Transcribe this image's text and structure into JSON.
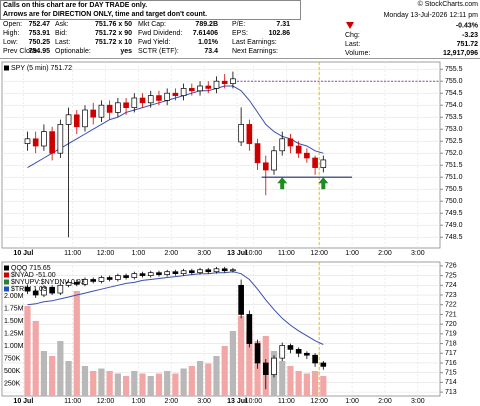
{
  "header": {
    "note": [
      "Calls on this chart are for DAY TRADE only.",
      "Arrows are for DIRECTION ONLY, time and target don't count."
    ],
    "copyright": "© StockCharts.com",
    "datetime": "Monday 13-Jul-2026 12:11 pm",
    "change_pct": "-0.43%",
    "columns": [
      [
        {
          "label": "Open:",
          "value": "752.47"
        },
        {
          "label": "High:",
          "value": "753.91"
        },
        {
          "label": "Low:",
          "value": "750.25"
        },
        {
          "label": "Prev Close:",
          "value": "754.95"
        }
      ],
      [
        {
          "label": "Ask:",
          "value": "751.76 x 50"
        },
        {
          "label": "Bid:",
          "value": "751.72 x 90"
        },
        {
          "label": "Last:",
          "value": "751.72 x 10"
        },
        {
          "label": "Optionable:",
          "value": "yes"
        }
      ],
      [
        {
          "label": "Mkt Cap:",
          "value": "789.2B"
        },
        {
          "label": "Fwd Dividend:",
          "value": "7.61406"
        },
        {
          "label": "Fwd Yield:",
          "value": "1.01%"
        },
        {
          "label": "SCTR (ETF):",
          "value": "73.4"
        }
      ],
      [
        {
          "label": "P/E:",
          "value": "7.31"
        },
        {
          "label": "EPS:",
          "value": "102.86"
        },
        {
          "label": "Last Earnings:"
        },
        {
          "label": "Next Earnings:"
        }
      ]
    ],
    "right": [
      {
        "label": "Chg:",
        "value": "-3.23"
      },
      {
        "label": "Last:",
        "value": "751.72"
      },
      {
        "label": "Volume:",
        "value": "12,917,096"
      }
    ]
  },
  "chart_data": [
    {
      "type": "candlestick",
      "legend": [
        {
          "name": "SPY (5 min) 751.72",
          "color": "#000000"
        }
      ],
      "up_color": "#000000",
      "down_color": "#cc0000",
      "x": [
        0,
        1,
        2,
        3,
        4,
        5,
        6,
        7,
        8,
        9,
        10,
        11,
        12,
        13,
        14,
        15,
        16,
        17,
        18,
        19,
        20,
        21,
        22,
        23,
        24,
        25,
        26,
        27,
        28,
        29,
        30,
        31,
        32,
        33,
        34,
        35,
        36
      ],
      "open": [
        752.4,
        752.6,
        752.3,
        752.9,
        752.0,
        753.2,
        753.6,
        753.1,
        753.8,
        753.5,
        754.0,
        753.7,
        754.1,
        753.9,
        754.3,
        754.1,
        754.4,
        754.2,
        754.5,
        754.4,
        754.7,
        754.6,
        754.8,
        754.7,
        755.0,
        754.9,
        752.47,
        753.2,
        752.4,
        751.6,
        751.3,
        752.1,
        752.6,
        752.3,
        752.0,
        751.8,
        751.4
      ],
      "high": [
        752.9,
        752.9,
        753.2,
        753.1,
        753.4,
        753.9,
        753.8,
        754.0,
        754.1,
        754.2,
        754.2,
        754.3,
        754.3,
        754.5,
        754.5,
        754.6,
        754.6,
        754.7,
        754.7,
        754.9,
        754.9,
        755.0,
        755.0,
        755.2,
        755.3,
        755.4,
        753.91,
        753.4,
        752.6,
        751.9,
        752.3,
        752.9,
        752.8,
        752.5,
        752.2,
        751.9,
        751.9
      ],
      "low": [
        752.1,
        752.0,
        752.1,
        751.7,
        751.8,
        748.5,
        752.8,
        752.9,
        753.2,
        753.3,
        753.4,
        753.5,
        753.6,
        753.7,
        753.9,
        753.9,
        754.0,
        754.0,
        754.2,
        754.2,
        754.4,
        754.4,
        754.5,
        754.5,
        754.7,
        754.7,
        752.3,
        752.1,
        751.3,
        750.25,
        751.1,
        751.9,
        752.0,
        751.8,
        751.6,
        751.1,
        751.2
      ],
      "close": [
        752.6,
        752.3,
        752.9,
        752.0,
        753.2,
        753.6,
        753.1,
        753.8,
        753.5,
        754.0,
        753.7,
        754.1,
        753.9,
        754.3,
        754.1,
        754.4,
        754.2,
        754.5,
        754.4,
        754.7,
        754.6,
        754.8,
        754.7,
        755.0,
        754.9,
        755.1,
        753.2,
        752.4,
        751.6,
        751.3,
        752.1,
        752.6,
        752.3,
        752.0,
        751.8,
        751.4,
        751.72
      ],
      "ma": {
        "color": "#3a4fb0",
        "values": [
          751.4,
          751.6,
          751.8,
          752.0,
          752.2,
          752.4,
          752.6,
          752.8,
          753.0,
          753.2,
          753.4,
          753.5,
          753.7,
          753.8,
          753.9,
          754.0,
          754.1,
          754.2,
          754.3,
          754.4,
          754.5,
          754.6,
          754.6,
          754.7,
          754.8,
          754.8,
          754.6,
          754.2,
          753.7,
          753.2,
          752.9,
          752.7,
          752.6,
          752.4,
          752.3,
          752.1,
          752.0
        ]
      },
      "resistance": {
        "y": 755,
        "x": [
          26,
          50.7
        ],
        "color": "#8e44ad"
      },
      "support": {
        "y": 751,
        "x": [
          29,
          40
        ],
        "color": "#1a2a6c"
      },
      "arrows": {
        "x": [
          31.5,
          36.5
        ],
        "y": [
          750.75,
          750.75
        ],
        "color": "#1e8c1e"
      },
      "vline": {
        "x": 36,
        "color": "#e6c200"
      },
      "xlim": [
        -2.6,
        50.7
      ],
      "xticks": [
        {
          "value": 0,
          "label": "10 Jul"
        },
        {
          "value": 6,
          "label": "11:00"
        },
        {
          "value": 10,
          "label": "12:00"
        },
        {
          "value": 14,
          "label": "1:00"
        },
        {
          "value": 18,
          "label": "2:00"
        },
        {
          "value": 22,
          "label": "3:00"
        },
        {
          "value": 26,
          "label": "13 Jul"
        },
        {
          "value": 28,
          "label": "10:00"
        },
        {
          "value": 32,
          "label": "11:00"
        },
        {
          "value": 36,
          "label": "12:00"
        },
        {
          "value": 40,
          "label": "1:00"
        },
        {
          "value": 44,
          "label": "2:00"
        },
        {
          "value": 48,
          "label": "3:00"
        }
      ],
      "ylim": [
        748.05,
        755.8
      ],
      "yticks": [
        748.5,
        {
          "value": 749,
          "label": "749.0"
        },
        749.5,
        {
          "value": 750,
          "label": "750.0"
        },
        750.5,
        {
          "value": 751,
          "label": "751.0"
        },
        751.5,
        {
          "value": 752,
          "label": "752.0"
        },
        752.5,
        {
          "value": 753,
          "label": "753.0"
        },
        753.5,
        {
          "value": 754,
          "label": "754.0"
        },
        754.5,
        {
          "value": 755,
          "label": "755.0"
        },
        755.5
      ],
      "grid": true
    },
    {
      "type": "candlestick",
      "legend": [
        {
          "name": "QQQ 715.65",
          "color": "#000000"
        },
        {
          "name": "$NYAD -51.00",
          "color": "#cc0000"
        },
        {
          "name": "$NYUPV:$NYDNV 0.93",
          "color": "#2e7d32"
        },
        {
          "name": "$TRIN 1.03",
          "color": "#1f4fbf"
        }
      ],
      "up_color": "#000000",
      "down_color": "#000000",
      "x": [
        0,
        1,
        2,
        3,
        4,
        5,
        6,
        7,
        8,
        9,
        10,
        11,
        12,
        13,
        14,
        15,
        16,
        17,
        18,
        19,
        20,
        21,
        22,
        23,
        24,
        25,
        26,
        27,
        28,
        29,
        30,
        31,
        32,
        33,
        34,
        35,
        36
      ],
      "open": [
        723.8,
        723.4,
        723.0,
        723.8,
        723.2,
        724.0,
        724.3,
        724.1,
        724.6,
        724.4,
        724.8,
        724.6,
        725.0,
        724.8,
        725.2,
        725.0,
        725.3,
        725.1,
        725.4,
        725.2,
        725.5,
        725.3,
        725.6,
        725.4,
        725.7,
        725.5,
        724.0,
        721.0,
        718.0,
        716.0,
        714.8,
        716.5,
        717.8,
        717.4,
        717.0,
        716.8,
        716.0
      ],
      "high": [
        724.1,
        723.6,
        724.0,
        724.0,
        724.2,
        724.5,
        724.6,
        724.8,
        724.8,
        725.0,
        725.0,
        725.2,
        725.2,
        725.4,
        725.4,
        725.5,
        725.5,
        725.6,
        725.6,
        725.7,
        725.7,
        725.8,
        725.8,
        725.9,
        725.9,
        725.8,
        724.6,
        721.4,
        718.4,
        716.4,
        716.8,
        718.1,
        718.0,
        717.6,
        717.2,
        717.0,
        716.2
      ],
      "low": [
        723.1,
        722.7,
        722.8,
        723.0,
        723.0,
        723.8,
        723.9,
        723.9,
        724.2,
        724.2,
        724.4,
        724.4,
        724.6,
        724.6,
        724.8,
        724.8,
        724.9,
        724.9,
        725.0,
        725.0,
        725.1,
        725.1,
        725.2,
        725.2,
        725.3,
        725.3,
        720.6,
        717.6,
        715.4,
        713.3,
        714.5,
        716.2,
        717.0,
        716.6,
        716.4,
        715.6,
        715.3
      ],
      "close": [
        723.4,
        723.0,
        723.8,
        723.2,
        724.0,
        724.3,
        724.1,
        724.6,
        724.4,
        724.8,
        724.6,
        725.0,
        724.8,
        725.2,
        725.0,
        725.3,
        725.1,
        725.4,
        725.2,
        725.5,
        725.3,
        725.6,
        725.4,
        725.7,
        725.5,
        725.6,
        721.0,
        718.0,
        716.0,
        714.8,
        716.5,
        717.8,
        717.4,
        717.0,
        716.8,
        716.0,
        715.65
      ],
      "ma": {
        "color": "#3a4fb0",
        "values": [
          722.0,
          722.1,
          722.3,
          722.4,
          722.6,
          722.8,
          723.0,
          723.2,
          723.4,
          723.6,
          723.8,
          724.0,
          724.2,
          724.3,
          724.5,
          724.6,
          724.7,
          724.8,
          724.9,
          725.0,
          725.1,
          725.2,
          725.2,
          725.3,
          725.3,
          725.4,
          725.2,
          724.6,
          723.6,
          722.5,
          721.5,
          720.6,
          719.9,
          719.3,
          718.8,
          718.3,
          717.9
        ]
      },
      "volume": {
        "up_color": "#b8b8b8",
        "down_color": "#f2a7a7",
        "axis": "y2",
        "values": [
          1800000,
          1500000,
          900000,
          800000,
          1100000,
          700000,
          2100000,
          600000,
          500000,
          550000,
          500000,
          450000,
          400000,
          500000,
          450000,
          400000,
          450000,
          500000,
          450000,
          550000,
          600000,
          700000,
          650000,
          800000,
          1000000,
          1300000,
          1600000,
          1300000,
          1100000,
          1200000,
          900000,
          700000,
          600000,
          500000,
          450000,
          500000,
          400000
        ]
      },
      "vline": {
        "x": 36,
        "color": "#e6c200"
      },
      "xlim": [
        -2.6,
        50.7
      ],
      "xticks": [
        {
          "value": 0,
          "label": "10 Jul"
        },
        {
          "value": 6,
          "label": "11:00"
        },
        {
          "value": 10,
          "label": "12:00"
        },
        {
          "value": 14,
          "label": "1:00"
        },
        {
          "value": 18,
          "label": "2:00"
        },
        {
          "value": 22,
          "label": "3:00"
        },
        {
          "value": 26,
          "label": "13 Jul"
        },
        {
          "value": 28,
          "label": "10:00"
        },
        {
          "value": 32,
          "label": "11:00"
        },
        {
          "value": 36,
          "label": "12:00"
        },
        {
          "value": 40,
          "label": "1:00"
        },
        {
          "value": 44,
          "label": "2:00"
        },
        {
          "value": 48,
          "label": "3:00"
        }
      ],
      "ylim": [
        712.6,
        726.4
      ],
      "yticks": [
        713,
        714,
        715,
        716,
        717,
        718,
        719,
        720,
        721,
        722,
        723,
        724,
        725,
        726
      ],
      "y2lim": [
        0,
        2680000
      ],
      "y2ticks": [
        {
          "value": 250000,
          "label": "250K"
        },
        {
          "value": 500000,
          "label": "500K"
        },
        {
          "value": 750000,
          "label": "750K"
        },
        {
          "value": 1000000,
          "label": "1.00M"
        },
        {
          "value": 1250000,
          "label": "1.25M"
        },
        {
          "value": 1500000,
          "label": "1.50M"
        },
        {
          "value": 1750000,
          "label": "1.75M"
        },
        {
          "value": 2000000,
          "label": "2.00M"
        }
      ],
      "grid": true
    }
  ]
}
